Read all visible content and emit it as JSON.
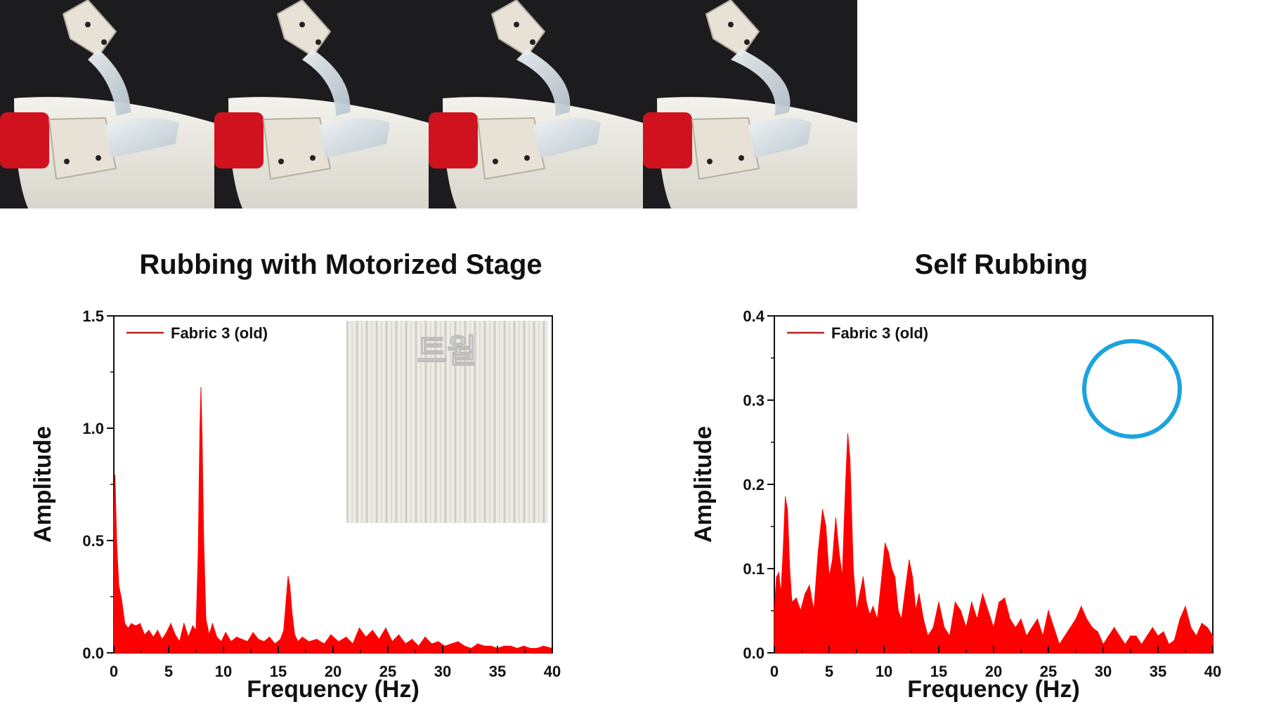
{
  "colors": {
    "series": "#ff0000",
    "legend_line": "#b22222",
    "circle": "#1aa3df",
    "fabric": "#ecebe4",
    "background": "#1c1c1e"
  },
  "icons": {
    "photo_strip": "soft-gripper-rubbing-fabric-photo-sequence",
    "inset": "twill-fabric-swatch",
    "circle": "blue-circle-annotation"
  },
  "chart_data": [
    {
      "type": "area",
      "title": "Rubbing with Motorized Stage",
      "xlabel": "Frequency (Hz)",
      "ylabel": "Amplitude",
      "xlim": [
        0,
        40
      ],
      "ylim": [
        0,
        1.5
      ],
      "xticks": [
        "0",
        "5",
        "10",
        "15",
        "20",
        "25",
        "30",
        "35",
        "40"
      ],
      "yticks": [
        "0.0",
        "0.5",
        "1.0",
        "1.5"
      ],
      "legend": {
        "label": "Fabric 3 (old)",
        "position": "top-left"
      },
      "inset_label": "트윌",
      "grid": false,
      "series": [
        {
          "name": "Fabric 3 (old)",
          "x": [
            0,
            0.1,
            0.25,
            0.45,
            0.7,
            1.0,
            1.3,
            1.6,
            2.0,
            2.4,
            2.8,
            3.2,
            3.6,
            4.0,
            4.4,
            4.8,
            5.2,
            5.6,
            6.0,
            6.4,
            6.8,
            7.2,
            7.5,
            7.7,
            7.85,
            7.95,
            8.05,
            8.2,
            8.4,
            8.7,
            9.0,
            9.4,
            9.8,
            10.2,
            10.7,
            11.2,
            11.7,
            12.2,
            12.7,
            13.2,
            13.7,
            14.2,
            14.7,
            15.2,
            15.5,
            15.75,
            15.9,
            16.05,
            16.25,
            16.5,
            16.8,
            17.2,
            17.8,
            18.5,
            19.2,
            19.8,
            20.5,
            21.2,
            21.8,
            22.4,
            23.0,
            23.6,
            24.2,
            24.8,
            25.4,
            26.0,
            26.6,
            27.2,
            27.8,
            28.4,
            29.0,
            29.6,
            30.2,
            30.8,
            31.4,
            32.0,
            32.6,
            33.2,
            33.8,
            34.4,
            35.0,
            35.6,
            36.2,
            36.8,
            37.4,
            38.0,
            38.6,
            39.2,
            40
          ],
          "values": [
            0.6,
            0.79,
            0.5,
            0.3,
            0.24,
            0.13,
            0.11,
            0.13,
            0.12,
            0.13,
            0.08,
            0.1,
            0.07,
            0.1,
            0.06,
            0.09,
            0.13,
            0.08,
            0.05,
            0.13,
            0.07,
            0.12,
            0.1,
            0.45,
            1.0,
            1.18,
            0.95,
            0.5,
            0.15,
            0.08,
            0.13,
            0.07,
            0.05,
            0.09,
            0.05,
            0.07,
            0.06,
            0.05,
            0.09,
            0.06,
            0.05,
            0.07,
            0.04,
            0.06,
            0.1,
            0.25,
            0.34,
            0.3,
            0.18,
            0.08,
            0.05,
            0.07,
            0.05,
            0.06,
            0.04,
            0.08,
            0.05,
            0.07,
            0.04,
            0.11,
            0.07,
            0.1,
            0.06,
            0.11,
            0.05,
            0.08,
            0.04,
            0.06,
            0.03,
            0.07,
            0.04,
            0.05,
            0.03,
            0.04,
            0.05,
            0.03,
            0.02,
            0.04,
            0.03,
            0.03,
            0.02,
            0.03,
            0.03,
            0.02,
            0.03,
            0.02,
            0.02,
            0.03,
            0.02
          ]
        }
      ]
    },
    {
      "type": "area",
      "title": "Self Rubbing",
      "xlabel": "Frequency (Hz)",
      "ylabel": "Amplitude",
      "xlim": [
        0,
        40
      ],
      "ylim": [
        0,
        0.4
      ],
      "xticks": [
        "0",
        "5",
        "10",
        "15",
        "20",
        "25",
        "30",
        "35",
        "40"
      ],
      "yticks": [
        "0.0",
        "0.1",
        "0.2",
        "0.3",
        "0.4"
      ],
      "legend": {
        "label": "Fabric 3 (old)",
        "position": "top-left"
      },
      "grid": false,
      "series": [
        {
          "name": "Fabric 3 (old)",
          "x": [
            0,
            0.2,
            0.4,
            0.6,
            0.8,
            1.0,
            1.2,
            1.4,
            1.6,
            2.0,
            2.4,
            2.8,
            3.2,
            3.6,
            4.0,
            4.4,
            4.7,
            5.0,
            5.3,
            5.6,
            5.9,
            6.2,
            6.5,
            6.7,
            6.9,
            7.2,
            7.5,
            7.8,
            8.1,
            8.4,
            8.7,
            9.0,
            9.4,
            9.8,
            10.1,
            10.4,
            10.7,
            11.0,
            11.3,
            11.6,
            12.0,
            12.3,
            12.6,
            12.9,
            13.2,
            13.6,
            14.0,
            14.5,
            15.0,
            15.5,
            16.0,
            16.5,
            17.0,
            17.5,
            18.0,
            18.5,
            19.0,
            19.5,
            20.0,
            20.5,
            21.0,
            21.5,
            22.0,
            22.5,
            23.0,
            23.5,
            24.0,
            24.5,
            25.0,
            25.5,
            26.0,
            26.5,
            27.0,
            27.5,
            28.0,
            28.5,
            29.0,
            29.5,
            30.0,
            30.5,
            31.0,
            31.5,
            32.0,
            32.5,
            33.0,
            33.5,
            34.0,
            34.5,
            35.0,
            35.5,
            36.0,
            36.5,
            37.0,
            37.5,
            38.0,
            38.5,
            39.0,
            39.5,
            40
          ],
          "values": [
            0.05,
            0.09,
            0.095,
            0.07,
            0.12,
            0.185,
            0.17,
            0.1,
            0.06,
            0.065,
            0.05,
            0.07,
            0.08,
            0.05,
            0.12,
            0.17,
            0.15,
            0.09,
            0.11,
            0.16,
            0.12,
            0.09,
            0.2,
            0.26,
            0.23,
            0.1,
            0.05,
            0.07,
            0.09,
            0.06,
            0.045,
            0.055,
            0.04,
            0.09,
            0.13,
            0.12,
            0.1,
            0.09,
            0.05,
            0.04,
            0.08,
            0.11,
            0.09,
            0.05,
            0.07,
            0.04,
            0.02,
            0.03,
            0.06,
            0.03,
            0.02,
            0.06,
            0.05,
            0.03,
            0.06,
            0.04,
            0.07,
            0.05,
            0.03,
            0.06,
            0.065,
            0.04,
            0.03,
            0.04,
            0.02,
            0.03,
            0.04,
            0.02,
            0.05,
            0.03,
            0.01,
            0.02,
            0.03,
            0.04,
            0.055,
            0.04,
            0.03,
            0.025,
            0.01,
            0.02,
            0.03,
            0.02,
            0.01,
            0.02,
            0.02,
            0.01,
            0.02,
            0.03,
            0.02,
            0.025,
            0.01,
            0.015,
            0.04,
            0.055,
            0.03,
            0.02,
            0.035,
            0.03,
            0.02
          ]
        }
      ]
    }
  ]
}
